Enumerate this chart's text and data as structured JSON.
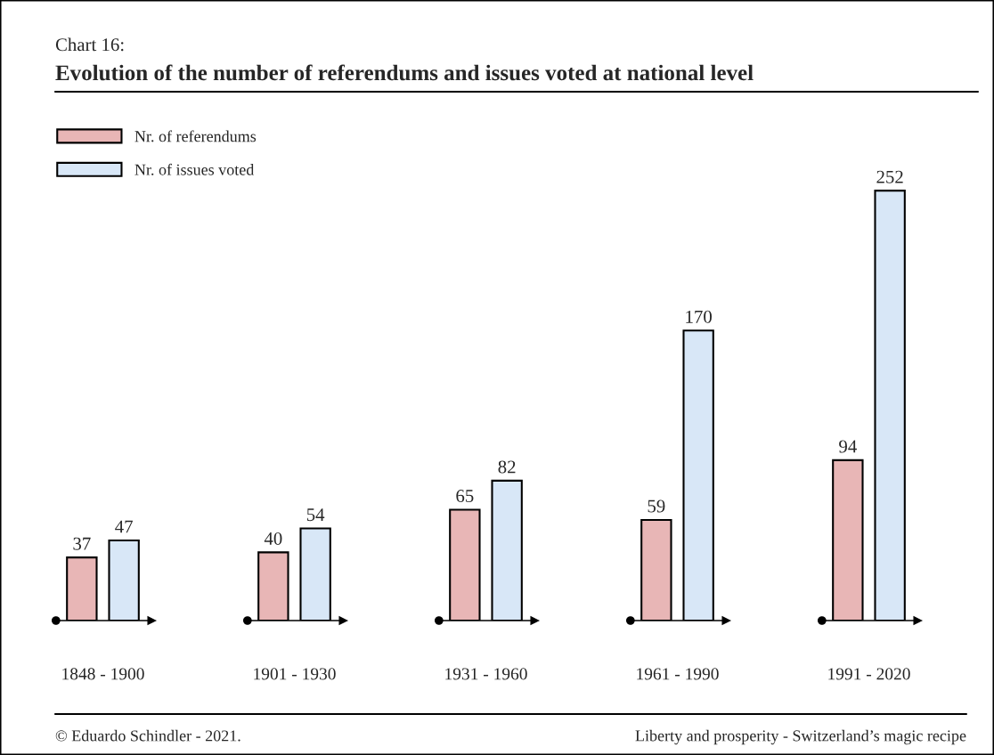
{
  "chart_data": {
    "type": "bar",
    "title": "Evolution of the number of referendums and issues voted at national level",
    "subtitle": "Chart 16:",
    "categories": [
      "1848 - 1900",
      "1901 - 1930",
      "1931 - 1960",
      "1961 - 1990",
      "1991 - 2020"
    ],
    "series": [
      {
        "name": "Nr. of referendums",
        "color": "#e8b6b6",
        "values": [
          37,
          40,
          65,
          59,
          94
        ]
      },
      {
        "name": "Nr. of issues voted",
        "color": "#d8e7f7",
        "values": [
          47,
          54,
          82,
          170,
          252
        ]
      }
    ],
    "data_labels": true,
    "legend": "top left",
    "grid": false,
    "annotations": [
      "© Eduardo Schindler - 2021.",
      "Liberty and prosperity - Switzerland’s magic recipe"
    ]
  }
}
